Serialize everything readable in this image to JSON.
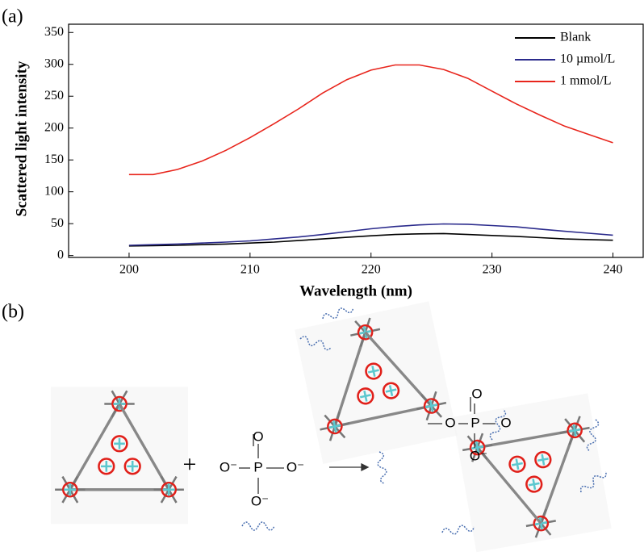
{
  "chart_data": {
    "type": "line",
    "panel_label": "(a)",
    "x_label": "Wavelength (nm)",
    "y_label": "Scattered light intensity",
    "x": [
      200,
      202,
      204,
      206,
      208,
      210,
      212,
      214,
      216,
      218,
      220,
      222,
      224,
      226,
      228,
      230,
      232,
      234,
      236,
      238,
      240
    ],
    "series": [
      {
        "name": "Blank",
        "color": "#000000",
        "values": [
          15,
          15.5,
          16,
          17,
          18,
          19.5,
          21,
          23.5,
          26,
          28.5,
          31,
          33,
          34,
          34.5,
          33,
          31.5,
          30,
          28,
          26,
          25,
          24
        ]
      },
      {
        "name": "10 µmol/L",
        "color": "#2b2b8c",
        "values": [
          16,
          17,
          18,
          19.5,
          21,
          23,
          26,
          29,
          33,
          37.5,
          42,
          45.5,
          48,
          49.5,
          49,
          47,
          45,
          41.5,
          38,
          35,
          32
        ]
      },
      {
        "name": "1 mmol/L",
        "color": "#e8251c",
        "values": [
          127,
          127,
          135,
          148,
          165,
          185,
          207,
          230,
          255,
          276,
          291,
          299,
          299,
          292,
          278,
          258,
          238,
          220,
          203,
          190,
          177
        ]
      }
    ],
    "xlim": [
      195,
      242.5
    ],
    "ylim": [
      -3,
      363
    ],
    "xticks": [
      200,
      210,
      220,
      230,
      240
    ],
    "yticks": [
      0,
      50,
      100,
      150,
      200,
      250,
      300,
      350
    ],
    "legend": "top-right",
    "grid": false
  },
  "diagram": {
    "panel_label": "(b)",
    "plus": "+",
    "phosphate": {
      "top": "O",
      "center": "P",
      "left": "O⁻",
      "right": "O⁻",
      "bottom": "O⁻"
    },
    "product": {
      "top": "O",
      "center": "P",
      "left": "O",
      "right": "O",
      "bottom": "O⁻"
    }
  }
}
